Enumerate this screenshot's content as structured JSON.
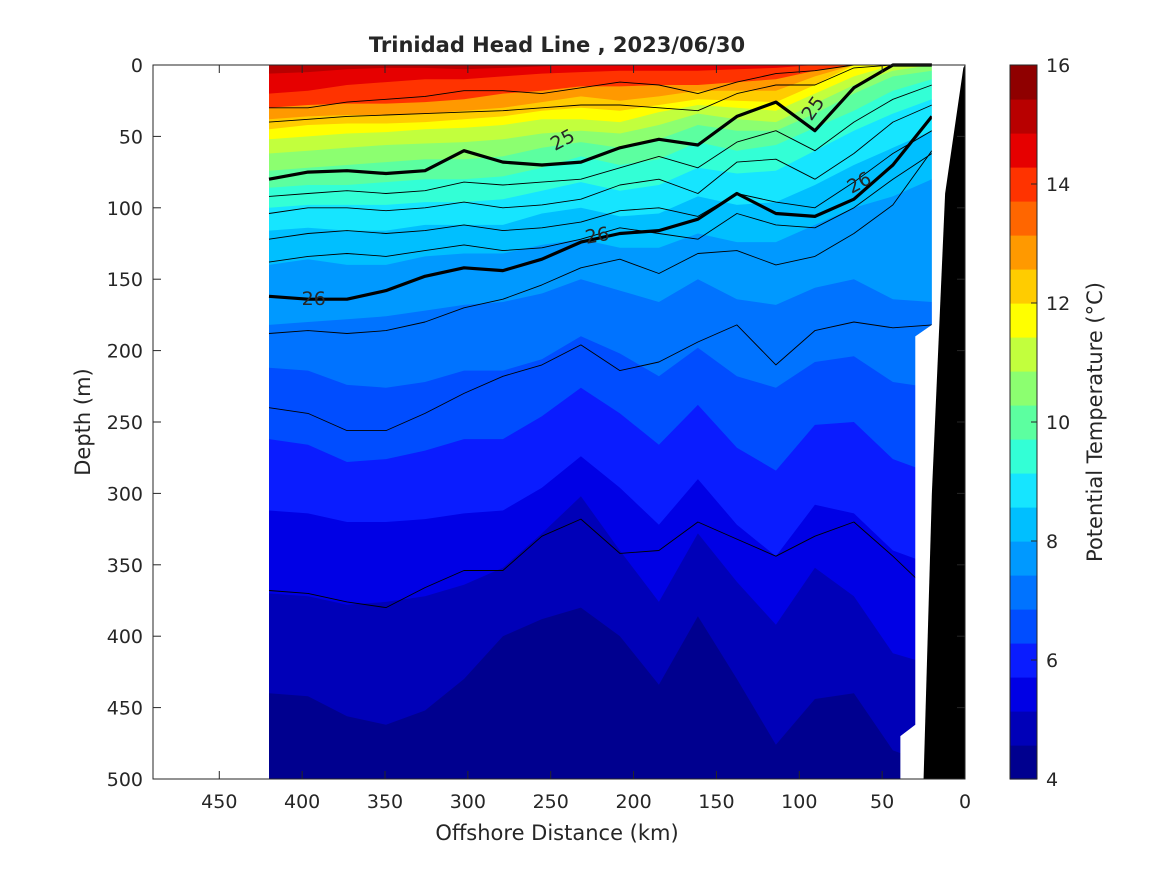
{
  "chart_data": {
    "type": "heatmap",
    "title": "Trinidad Head Line , 2023/06/30",
    "xlabel": "Offshore Distance (km)",
    "ylabel": "Depth (m)",
    "colorbar_label": "Potential Temperature (°C)",
    "xlim": [
      490,
      0
    ],
    "ylim": [
      0,
      500
    ],
    "x_direction": "reversed",
    "y_direction": "reversed",
    "x_ticks": [
      450,
      400,
      350,
      300,
      250,
      200,
      150,
      100,
      50,
      0
    ],
    "y_ticks": [
      0,
      50,
      100,
      150,
      200,
      250,
      300,
      350,
      400,
      450,
      500
    ],
    "colorbar_range": [
      4,
      16
    ],
    "colorbar_ticks": [
      4,
      6,
      8,
      10,
      12,
      14,
      16
    ],
    "colorbar_colors": [
      "#00008f",
      "#0000b8",
      "#0000e5",
      "#0a1cff",
      "#004dff",
      "#0073ff",
      "#0099ff",
      "#00bfff",
      "#16e5ff",
      "#33ffd6",
      "#5cffa0",
      "#8cff70",
      "#c2ff3d",
      "#ffff00",
      "#ffcc00",
      "#ff9900",
      "#ff6600",
      "#ff3300",
      "#e60000",
      "#b80000",
      "#8f0000"
    ],
    "data_start_x_km": 420,
    "contour_labels": [
      {
        "text": "25",
        "x": 243,
        "y": 52,
        "angle": -28
      },
      {
        "text": "25",
        "x": 92,
        "y": 30,
        "angle": -55
      },
      {
        "text": "26",
        "x": 64,
        "y": 82,
        "angle": -28
      },
      {
        "text": "26",
        "x": 222,
        "y": 119,
        "angle": -10
      },
      {
        "text": "26",
        "x": 393,
        "y": 163,
        "angle": 0
      }
    ],
    "isotherm_bands": [
      {
        "temp": 15.0,
        "depth": [
          6,
          5,
          3,
          2,
          2,
          3,
          2,
          1,
          0,
          0,
          0,
          0,
          0,
          0,
          0,
          0,
          0,
          0
        ]
      },
      {
        "temp": 14.4,
        "depth": [
          20,
          18,
          14,
          12,
          10,
          10,
          8,
          6,
          5,
          4,
          4,
          4,
          3,
          2,
          0,
          0,
          0,
          0
        ]
      },
      {
        "temp": 13.8,
        "depth": [
          30,
          28,
          27,
          27,
          26,
          24,
          20,
          18,
          15,
          15,
          14,
          14,
          12,
          10,
          4,
          0,
          0,
          0
        ]
      },
      {
        "temp": 13.1,
        "depth": [
          38,
          36,
          35,
          35,
          34,
          32,
          30,
          26,
          22,
          25,
          22,
          18,
          18,
          18,
          8,
          0,
          0,
          0
        ]
      },
      {
        "temp": 12.5,
        "depth": [
          45,
          42,
          41,
          41,
          40,
          38,
          36,
          32,
          30,
          32,
          28,
          24,
          25,
          26,
          14,
          0,
          0,
          0
        ]
      },
      {
        "temp": 11.9,
        "depth": [
          52,
          50,
          48,
          47,
          45,
          44,
          42,
          38,
          38,
          40,
          33,
          28,
          30,
          32,
          20,
          8,
          0,
          0
        ]
      },
      {
        "temp": 11.3,
        "depth": [
          62,
          60,
          58,
          56,
          55,
          54,
          52,
          48,
          46,
          48,
          42,
          34,
          38,
          40,
          27,
          14,
          4,
          0
        ]
      },
      {
        "temp": 10.7,
        "depth": [
          74,
          72,
          70,
          68,
          66,
          66,
          64,
          58,
          54,
          58,
          52,
          42,
          46,
          46,
          34,
          20,
          8,
          4
        ]
      },
      {
        "temp": 10.1,
        "depth": [
          86,
          84,
          84,
          82,
          80,
          80,
          78,
          72,
          64,
          70,
          66,
          54,
          60,
          56,
          44,
          32,
          18,
          10
        ]
      },
      {
        "temp": 9.5,
        "depth": [
          100,
          98,
          98,
          98,
          96,
          96,
          94,
          88,
          82,
          88,
          84,
          72,
          76,
          74,
          60,
          46,
          34,
          24
        ]
      },
      {
        "temp": 8.9,
        "depth": [
          116,
          114,
          116,
          116,
          112,
          112,
          112,
          104,
          100,
          106,
          104,
          92,
          98,
          96,
          84,
          70,
          58,
          46
        ]
      },
      {
        "temp": 8.3,
        "depth": [
          140,
          136,
          140,
          140,
          134,
          132,
          132,
          126,
          122,
          128,
          128,
          118,
          124,
          124,
          112,
          100,
          92,
          80
        ]
      },
      {
        "temp": 7.7,
        "depth": [
          182,
          180,
          178,
          176,
          172,
          168,
          166,
          160,
          150,
          158,
          166,
          150,
          164,
          168,
          156,
          150,
          164,
          166
        ]
      },
      {
        "temp": 7.1,
        "depth": [
          212,
          214,
          224,
          226,
          222,
          214,
          214,
          206,
          190,
          202,
          218,
          198,
          218,
          226,
          208,
          204,
          222,
          226
        ]
      },
      {
        "temp": 6.6,
        "depth": [
          262,
          266,
          278,
          276,
          270,
          262,
          262,
          246,
          226,
          244,
          266,
          238,
          268,
          284,
          252,
          250,
          276,
          286
        ]
      },
      {
        "temp": 6.0,
        "depth": [
          312,
          314,
          320,
          320,
          318,
          314,
          312,
          296,
          274,
          296,
          322,
          290,
          322,
          344,
          308,
          314,
          340,
          350
        ]
      },
      {
        "temp": 5.4,
        "depth": [
          370,
          372,
          378,
          376,
          372,
          364,
          352,
          328,
          302,
          340,
          376,
          328,
          362,
          392,
          352,
          372,
          412,
          420
        ]
      },
      {
        "temp": 4.8,
        "depth": [
          440,
          442,
          456,
          462,
          452,
          430,
          400,
          388,
          380,
          400,
          434,
          386,
          430,
          476,
          444,
          440,
          480,
          490
        ]
      }
    ],
    "sigma_contours": [
      {
        "label": "24.6",
        "bold": false,
        "depth": [
          30,
          30,
          26,
          24,
          22,
          18,
          18,
          20,
          16,
          12,
          14,
          20,
          12,
          6,
          4,
          0,
          0,
          0
        ]
      },
      {
        "label": "24.8",
        "bold": false,
        "depth": [
          40,
          38,
          36,
          35,
          34,
          33,
          32,
          30,
          28,
          28,
          30,
          32,
          20,
          14,
          14,
          2,
          0,
          0
        ]
      },
      {
        "label": "25",
        "bold": true,
        "depth": [
          80,
          75,
          74,
          76,
          74,
          60,
          68,
          70,
          68,
          58,
          52,
          56,
          36,
          26,
          46,
          16,
          0,
          0
        ]
      },
      {
        "label": "25.2",
        "bold": false,
        "depth": [
          92,
          90,
          88,
          90,
          88,
          82,
          84,
          82,
          80,
          72,
          64,
          72,
          54,
          46,
          60,
          40,
          24,
          14
        ]
      },
      {
        "label": "25.4",
        "bold": false,
        "depth": [
          104,
          100,
          100,
          102,
          100,
          96,
          100,
          98,
          94,
          84,
          80,
          90,
          68,
          66,
          80,
          62,
          40,
          28
        ]
      },
      {
        "label": "25.6",
        "bold": false,
        "depth": [
          122,
          118,
          116,
          118,
          116,
          112,
          116,
          114,
          110,
          102,
          100,
          106,
          90,
          96,
          100,
          82,
          62,
          46
        ]
      },
      {
        "label": "25.8",
        "bold": false,
        "depth": [
          138,
          134,
          132,
          134,
          130,
          126,
          130,
          128,
          122,
          114,
          118,
          122,
          104,
          112,
          114,
          100,
          80,
          62
        ]
      },
      {
        "label": "26",
        "bold": true,
        "depth": [
          162,
          164,
          164,
          158,
          148,
          142,
          144,
          136,
          124,
          118,
          116,
          108,
          90,
          104,
          106,
          94,
          70,
          36
        ]
      },
      {
        "label": "26.2",
        "bold": false,
        "depth": [
          188,
          186,
          188,
          186,
          180,
          170,
          164,
          154,
          142,
          136,
          146,
          132,
          130,
          140,
          134,
          118,
          98,
          60
        ]
      },
      {
        "label": "26.4",
        "bold": false,
        "depth": [
          240,
          244,
          256,
          256,
          244,
          230,
          218,
          210,
          196,
          214,
          208,
          194,
          182,
          210,
          186,
          180,
          184,
          182
        ]
      },
      {
        "label": "26.6",
        "bold": false,
        "depth": [
          368,
          370,
          376,
          380,
          366,
          354,
          354,
          330,
          318,
          342,
          340,
          320,
          332,
          344,
          330,
          320,
          344,
          370
        ]
      }
    ]
  }
}
